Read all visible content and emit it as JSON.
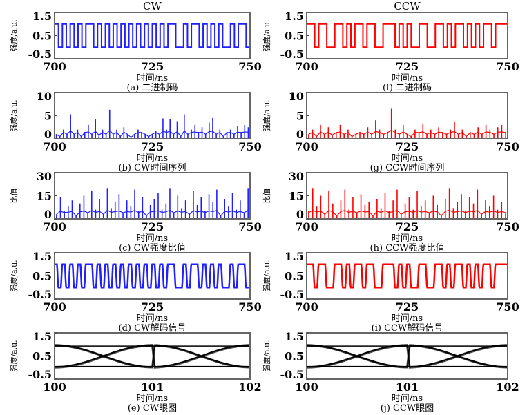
{
  "chart_data": [
    {
      "id": "a",
      "type": "line",
      "style": "step",
      "title": "CW",
      "caption": "(a) 二进制码",
      "xlabel": "时间/ns",
      "ylabel": "强度/a.u.",
      "xlim": [
        700,
        750
      ],
      "ylim": [
        -0.5,
        1.5
      ],
      "xticks": [
        "700",
        "725",
        "750"
      ],
      "yticks": [
        "1.5",
        "0.5",
        "-0.5"
      ],
      "color": "#1f1fff",
      "levels": [
        0,
        1
      ],
      "bits": [
        1,
        0,
        1,
        0,
        1,
        0,
        1,
        0,
        1,
        1,
        0,
        1,
        0,
        1,
        0,
        1,
        0,
        1,
        0,
        1,
        0,
        1,
        0,
        1,
        0,
        1,
        0,
        1,
        0,
        1,
        1,
        0,
        0,
        1,
        0,
        1,
        1,
        0,
        1,
        0,
        1,
        0,
        1,
        0,
        0,
        1,
        0,
        1,
        1,
        0
      ]
    },
    {
      "id": "f",
      "type": "line",
      "style": "step",
      "title": "CCW",
      "caption": "(f) 二进制码",
      "xlabel": "时间/ns",
      "ylabel": "强度/a.u.",
      "xlim": [
        700,
        750
      ],
      "ylim": [
        -0.5,
        1.5
      ],
      "xticks": [
        "700",
        "725",
        "750"
      ],
      "yticks": [
        "1.5",
        "0.5",
        "-0.5"
      ],
      "color": "#ff0000",
      "levels": [
        0,
        1
      ],
      "bits": [
        1,
        1,
        0,
        1,
        1,
        0,
        0,
        1,
        1,
        0,
        1,
        0,
        1,
        1,
        0,
        1,
        1,
        0,
        0,
        1,
        1,
        1,
        0,
        1,
        0,
        1,
        0,
        0,
        1,
        1,
        0,
        0,
        1,
        1,
        0,
        1,
        0,
        1,
        1,
        0,
        1,
        0,
        1,
        0,
        1,
        1,
        0,
        1,
        1,
        1
      ]
    },
    {
      "id": "b",
      "type": "line",
      "style": "spike",
      "caption": "(b) CW时间序列",
      "xlabel": "时间/ns",
      "ylabel": "强度/a.u.",
      "xlim": [
        700,
        750
      ],
      "ylim": [
        0,
        10
      ],
      "xticks": [
        "700",
        "725",
        "750"
      ],
      "yticks": [
        "10",
        "5",
        "0"
      ],
      "color": "#1f1fff",
      "values": [
        1,
        0.5,
        2,
        1,
        5.3,
        1,
        2,
        0.5,
        1.5,
        3,
        1,
        4.3,
        0.8,
        2,
        1,
        6.3,
        1,
        2,
        0.5,
        2.5,
        1,
        0.3,
        1,
        2,
        1.5,
        1,
        0.5,
        1,
        1.8,
        1,
        4.4,
        2,
        4.3,
        1,
        3.8,
        0.5,
        5.3,
        1,
        2,
        3,
        1.5,
        2.5,
        1,
        3.5,
        4.5,
        1,
        2,
        0.5,
        1.5,
        2,
        1,
        2.8,
        1.5,
        3,
        2.5
      ]
    },
    {
      "id": "g",
      "type": "line",
      "style": "spike",
      "caption": "(g) CCW时间序列",
      "xlabel": "时间/ns",
      "ylabel": "强度/a.u.",
      "xlim": [
        700,
        750
      ],
      "ylim": [
        0,
        10
      ],
      "xticks": [
        "700",
        "725",
        "750"
      ],
      "yticks": [
        "10",
        "5",
        "0"
      ],
      "color": "#ff0000",
      "values": [
        1,
        2,
        0.5,
        3,
        1,
        2.5,
        0.8,
        1.5,
        3,
        1,
        2,
        0.5,
        1,
        1.5,
        1,
        2.5,
        1,
        4,
        2,
        1,
        1.5,
        6.5,
        2,
        1,
        3,
        1,
        0.5,
        2,
        1.5,
        3.3,
        1,
        2,
        1,
        2.5,
        1.5,
        1,
        2,
        3.7,
        1,
        2,
        0.5,
        1.5,
        1,
        2.5,
        1,
        3,
        2,
        1,
        2.5,
        3,
        1.5
      ]
    },
    {
      "id": "c",
      "type": "line",
      "style": "spike",
      "caption": "(c) CW强度比值",
      "xlabel": "时间/ns",
      "ylabel": "比值",
      "xlim": [
        700,
        750
      ],
      "ylim": [
        0,
        30
      ],
      "xticks": [
        "700",
        "725",
        "750"
      ],
      "yticks": [
        "30",
        "15",
        "0"
      ],
      "color": "#1f1fff",
      "values": [
        3,
        14,
        5,
        8,
        12,
        2,
        10,
        15,
        4,
        18,
        6,
        13,
        3,
        20,
        7,
        11,
        16,
        4,
        12,
        8,
        19,
        5,
        14,
        2,
        9,
        13,
        17,
        6,
        10,
        20,
        4,
        15,
        7,
        12,
        3,
        18,
        9,
        14,
        5,
        16,
        11,
        19,
        2,
        13,
        8,
        17,
        6,
        12,
        4,
        20
      ]
    },
    {
      "id": "h",
      "type": "line",
      "style": "spike",
      "caption": "(h) CCW强度比值",
      "xlabel": "时间/ns",
      "ylabel": "比值",
      "xlim": [
        700,
        750
      ],
      "ylim": [
        0,
        30
      ],
      "xticks": [
        "700",
        "725",
        "750"
      ],
      "yticks": [
        "30",
        "15",
        "0"
      ],
      "color": "#ff0000",
      "values": [
        5,
        20,
        8,
        15,
        3,
        18,
        10,
        2,
        12,
        19,
        6,
        14,
        4,
        16,
        9,
        11,
        2,
        13,
        7,
        17,
        5,
        12,
        19,
        3,
        10,
        14,
        6,
        18,
        8,
        12,
        4,
        15,
        9,
        2,
        13,
        20,
        7,
        11,
        16,
        5,
        14,
        10,
        19,
        3,
        12,
        8,
        15,
        6,
        11,
        4
      ]
    },
    {
      "id": "d",
      "type": "line",
      "style": "smooth",
      "caption": "(d) CW解码信号",
      "xlabel": "时间/ns",
      "ylabel": "强度/a.u.",
      "xlim": [
        700,
        750
      ],
      "ylim": [
        -0.5,
        1.5
      ],
      "xticks": [
        "700",
        "725",
        "750"
      ],
      "yticks": [
        "1.5",
        "0.5",
        "-0.5"
      ],
      "color": "#1f1fff",
      "levels": [
        0,
        1
      ],
      "source": "a"
    },
    {
      "id": "i",
      "type": "line",
      "style": "smooth",
      "caption": "(i) CCW解码信号",
      "xlabel": "时间/ns",
      "ylabel": "强度/a.u.",
      "xlim": [
        700,
        750
      ],
      "ylim": [
        -0.5,
        1.5
      ],
      "xticks": [
        "700",
        "725",
        "750"
      ],
      "yticks": [
        "1.5",
        "0.5",
        "-0.5"
      ],
      "color": "#ff0000",
      "levels": [
        0,
        1
      ],
      "source": "f"
    },
    {
      "id": "e",
      "type": "line",
      "style": "eye",
      "caption": "(e) CW眼图",
      "xlabel": "时间/ns",
      "ylabel": "强度/a.u.",
      "xlim": [
        100,
        102
      ],
      "ylim": [
        -0.5,
        1.5
      ],
      "xticks": [
        "100",
        "101",
        "102"
      ],
      "yticks": [
        "1.5",
        "0.5",
        "-0.5"
      ],
      "color": "#000000",
      "levels": [
        0,
        1
      ],
      "thresholds": [
        0.93,
        0.05
      ]
    },
    {
      "id": "j",
      "type": "line",
      "style": "eye",
      "caption": "(j) CCW眼图",
      "xlabel": "时间/ns",
      "ylabel": "强度/a.u.",
      "xlim": [
        100,
        102
      ],
      "ylim": [
        -0.5,
        1.5
      ],
      "xticks": [
        "100",
        "101",
        "102"
      ],
      "yticks": [
        "1.5",
        "0.5",
        "-0.5"
      ],
      "color": "#000000",
      "levels": [
        0,
        1
      ],
      "thresholds": [
        0.93,
        0.05
      ]
    }
  ]
}
